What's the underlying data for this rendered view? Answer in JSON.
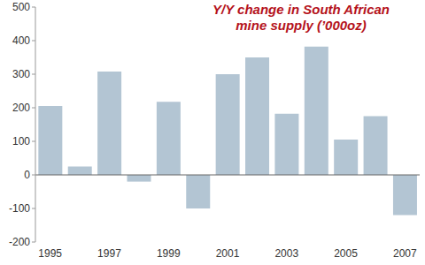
{
  "chart_data": {
    "type": "bar",
    "title": "Y/Y change in South African\nmine supply (’000oz)",
    "categories": [
      "1995",
      null,
      "1997",
      null,
      "1999",
      null,
      "2001",
      null,
      "2003",
      null,
      "2005",
      null,
      "2007"
    ],
    "values": [
      205,
      25,
      308,
      -20,
      218,
      -100,
      300,
      350,
      182,
      382,
      105,
      175,
      -120
    ],
    "color": "#b3c5d3",
    "ylim": [
      -200,
      500
    ],
    "yticks": [
      -200,
      -100,
      0,
      100,
      200,
      300,
      400,
      500
    ],
    "grid": false
  }
}
